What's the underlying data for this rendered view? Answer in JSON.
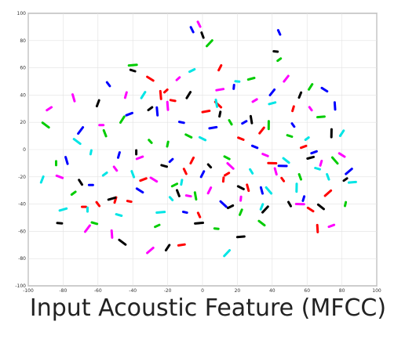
{
  "caption": "Input Acoustic Feature (MFCC)",
  "chart_data": {
    "type": "scatter",
    "title": "",
    "xlabel": "",
    "ylabel": "",
    "xlim": [
      -100,
      100
    ],
    "ylim": [
      -100,
      100
    ],
    "grid": true,
    "legend": "none",
    "x_ticks": [
      -100,
      -80,
      -60,
      -40,
      -20,
      0,
      20,
      40,
      60,
      80,
      100
    ],
    "y_ticks": [
      -100,
      -80,
      -60,
      -40,
      -20,
      0,
      20,
      40,
      60,
      80,
      100
    ],
    "series": [
      {
        "color": "#ff0000",
        "points": [
          [
            -68,
            -42
          ],
          [
            -60,
            -40
          ],
          [
            -50,
            -37
          ],
          [
            -34,
            -22
          ],
          [
            -30,
            52
          ],
          [
            -24,
            40
          ],
          [
            -21,
            43
          ],
          [
            -17,
            36
          ],
          [
            -10,
            -16
          ],
          [
            -6,
            -8
          ],
          [
            2,
            28
          ],
          [
            9,
            33
          ],
          [
            12,
            -22
          ],
          [
            14,
            -18
          ],
          [
            22,
            8
          ],
          [
            26,
            -28
          ],
          [
            34,
            14
          ],
          [
            40,
            -10
          ],
          [
            46,
            -22
          ],
          [
            52,
            30
          ],
          [
            58,
            2
          ],
          [
            62,
            -44
          ],
          [
            66,
            -58
          ],
          [
            72,
            -32
          ],
          [
            -42,
            -38
          ],
          [
            -2,
            -48
          ],
          [
            10,
            60
          ],
          [
            -12,
            -70
          ]
        ]
      },
      {
        "color": "#00cc00",
        "points": [
          [
            -90,
            18
          ],
          [
            -84,
            -10
          ],
          [
            -74,
            -32
          ],
          [
            -62,
            -54
          ],
          [
            -56,
            12
          ],
          [
            -46,
            22
          ],
          [
            -40,
            62
          ],
          [
            -30,
            6
          ],
          [
            -20,
            4
          ],
          [
            -16,
            -26
          ],
          [
            -8,
            10
          ],
          [
            -4,
            -34
          ],
          [
            4,
            78
          ],
          [
            8,
            -58
          ],
          [
            16,
            20
          ],
          [
            22,
            -46
          ],
          [
            28,
            52
          ],
          [
            34,
            -54
          ],
          [
            38,
            18
          ],
          [
            44,
            66
          ],
          [
            50,
            10
          ],
          [
            56,
            -20
          ],
          [
            62,
            46
          ],
          [
            68,
            24
          ],
          [
            76,
            -8
          ],
          [
            82,
            -40
          ],
          [
            -26,
            -56
          ],
          [
            14,
            -6
          ]
        ]
      },
      {
        "color": "#0000ff",
        "points": [
          [
            -78,
            -8
          ],
          [
            -70,
            14
          ],
          [
            -64,
            -26
          ],
          [
            -54,
            48
          ],
          [
            -48,
            -4
          ],
          [
            -42,
            26
          ],
          [
            -36,
            -30
          ],
          [
            -26,
            28
          ],
          [
            -18,
            -8
          ],
          [
            -12,
            20
          ],
          [
            -6,
            88
          ],
          [
            0,
            -18
          ],
          [
            6,
            16
          ],
          [
            12,
            -40
          ],
          [
            18,
            46
          ],
          [
            24,
            20
          ],
          [
            30,
            2
          ],
          [
            34,
            -30
          ],
          [
            40,
            42
          ],
          [
            46,
            -12
          ],
          [
            52,
            18
          ],
          [
            58,
            -36
          ],
          [
            64,
            -2
          ],
          [
            70,
            44
          ],
          [
            76,
            32
          ],
          [
            84,
            -16
          ],
          [
            -10,
            -46
          ],
          [
            44,
            86
          ]
        ]
      },
      {
        "color": "#00e5e5",
        "points": [
          [
            -92,
            -22
          ],
          [
            -80,
            -44
          ],
          [
            -72,
            6
          ],
          [
            -66,
            -44
          ],
          [
            -56,
            -18
          ],
          [
            -48,
            -48
          ],
          [
            -40,
            -18
          ],
          [
            -34,
            40
          ],
          [
            -24,
            -46
          ],
          [
            -18,
            -36
          ],
          [
            -12,
            -24
          ],
          [
            -6,
            58
          ],
          [
            0,
            8
          ],
          [
            8,
            34
          ],
          [
            14,
            -76
          ],
          [
            20,
            50
          ],
          [
            28,
            -16
          ],
          [
            34,
            -42
          ],
          [
            40,
            34
          ],
          [
            48,
            -8
          ],
          [
            54,
            -28
          ],
          [
            60,
            8
          ],
          [
            66,
            -14
          ],
          [
            72,
            -20
          ],
          [
            80,
            12
          ],
          [
            86,
            -24
          ],
          [
            38,
            -30
          ],
          [
            -64,
            -2
          ]
        ]
      },
      {
        "color": "#ff00ff",
        "points": [
          [
            -88,
            30
          ],
          [
            -82,
            -20
          ],
          [
            -74,
            38
          ],
          [
            -66,
            -58
          ],
          [
            -58,
            18
          ],
          [
            -50,
            -14
          ],
          [
            -44,
            40
          ],
          [
            -36,
            -6
          ],
          [
            -28,
            -22
          ],
          [
            -20,
            32
          ],
          [
            -14,
            52
          ],
          [
            -8,
            -34
          ],
          [
            -2,
            92
          ],
          [
            4,
            -30
          ],
          [
            10,
            44
          ],
          [
            16,
            -12
          ],
          [
            22,
            -36
          ],
          [
            30,
            36
          ],
          [
            36,
            -4
          ],
          [
            42,
            -16
          ],
          [
            48,
            52
          ],
          [
            56,
            -40
          ],
          [
            62,
            30
          ],
          [
            68,
            -10
          ],
          [
            74,
            -56
          ],
          [
            80,
            -4
          ],
          [
            -52,
            -62
          ],
          [
            -30,
            -74
          ]
        ]
      },
      {
        "color": "#000000",
        "points": [
          [
            -82,
            -54
          ],
          [
            -70,
            -24
          ],
          [
            -60,
            34
          ],
          [
            -52,
            -36
          ],
          [
            -46,
            -68
          ],
          [
            -38,
            -2
          ],
          [
            -30,
            30
          ],
          [
            -22,
            -12
          ],
          [
            -14,
            -32
          ],
          [
            -8,
            40
          ],
          [
            -2,
            -54
          ],
          [
            4,
            -12
          ],
          [
            10,
            26
          ],
          [
            16,
            -42
          ],
          [
            22,
            -28
          ],
          [
            28,
            22
          ],
          [
            36,
            -44
          ],
          [
            42,
            72
          ],
          [
            50,
            -40
          ],
          [
            56,
            40
          ],
          [
            62,
            -6
          ],
          [
            68,
            -42
          ],
          [
            74,
            12
          ],
          [
            82,
            -22
          ],
          [
            -40,
            58
          ],
          [
            0,
            84
          ],
          [
            -20,
            -72
          ],
          [
            22,
            -64
          ]
        ]
      }
    ]
  }
}
